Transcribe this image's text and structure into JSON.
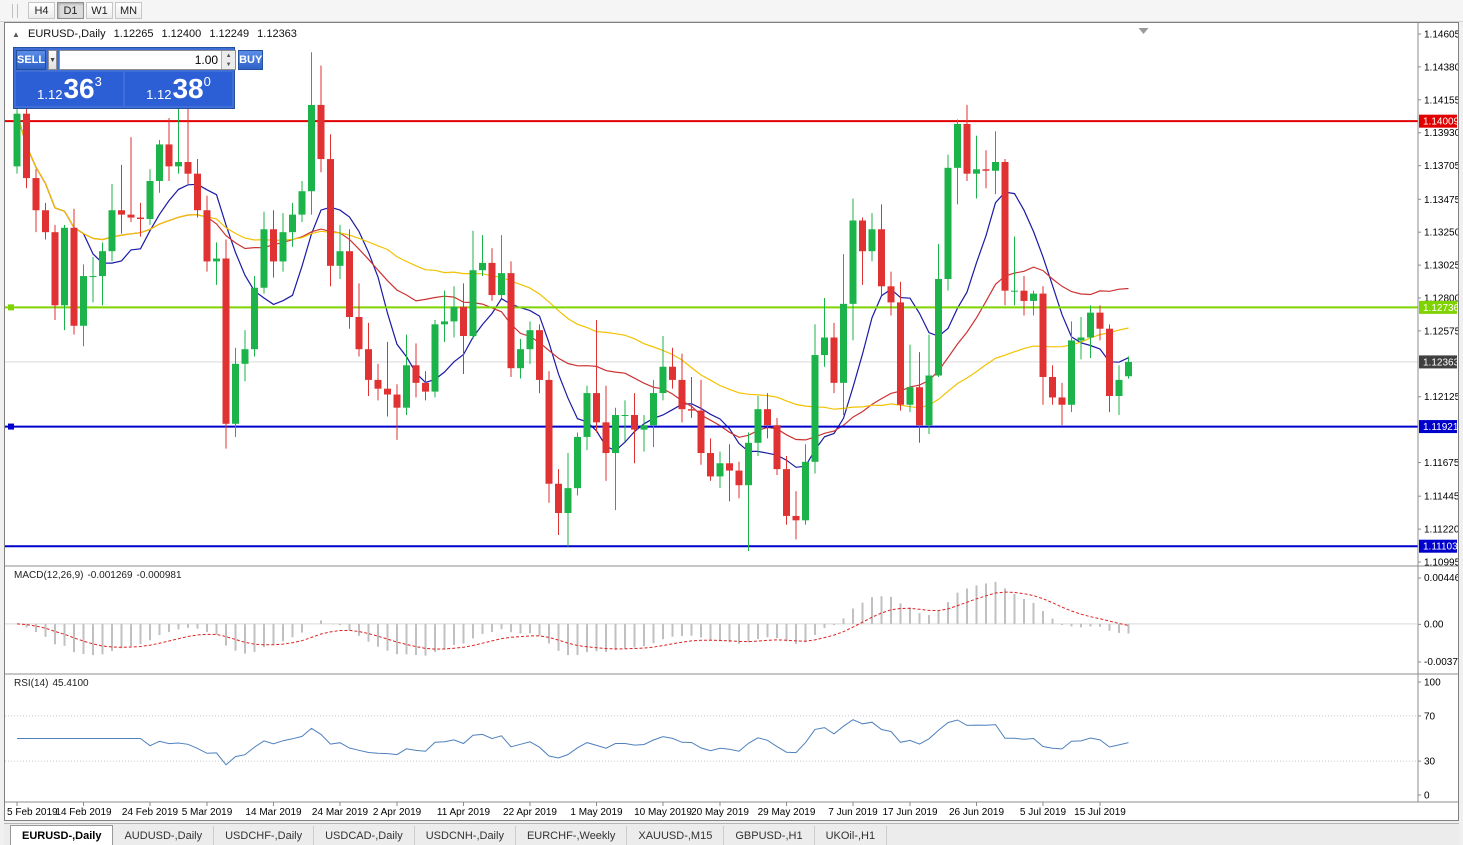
{
  "toolbar": {
    "timeframes": [
      "H4",
      "D1",
      "W1",
      "MN"
    ],
    "active": "D1"
  },
  "chart_header": {
    "collapse_icon": "▲",
    "symbol": "EURUSD-,Daily",
    "open": "1.12265",
    "high": "1.12400",
    "low": "1.12249",
    "close": "1.12363"
  },
  "trade_panel": {
    "sell_label": "SELL",
    "buy_label": "BUY",
    "volume": "1.00",
    "dropdown_icon": "▼",
    "spin_up_icon": "▲",
    "spin_down_icon": "▼",
    "sell_price": {
      "prefix": "1.12",
      "big": "36",
      "sup": "3"
    },
    "buy_price": {
      "prefix": "1.12",
      "big": "38",
      "sup": "0"
    }
  },
  "chart_data": {
    "type": "candlestick",
    "symbol": "EURUSD-",
    "timeframe": "Daily",
    "colors": {
      "up": "#1cb44a",
      "down": "#e03232",
      "macd_hist": "#c0c0c0",
      "macd_signal": "#dd2222",
      "rsi_line": "#4f81bd",
      "current_tag": "#3f3f3f",
      "grid": "#d9d9d9"
    },
    "moving_averages": [
      {
        "period": 8,
        "color": "#1a1aa6"
      },
      {
        "period": 21,
        "color": "#cc3333"
      },
      {
        "period": 40,
        "color": "#f2c200"
      }
    ],
    "y_axis": {
      "max": 1.14605,
      "min": 1.10995,
      "tick_labels": [
        "1.14605",
        "1.14380",
        "1.14155",
        "1.13930",
        "1.13705",
        "1.13475",
        "1.13250",
        "1.13025",
        "1.12800",
        "1.12575",
        "1.12125",
        "1.11675",
        "1.11445",
        "1.11220",
        "1.10995"
      ]
    },
    "hlines": [
      {
        "value": 1.14009,
        "label": "1.14009",
        "color": "#e00000",
        "handle": false
      },
      {
        "value": 1.12736,
        "label": "1.12736",
        "color": "#7fd300",
        "handle": true
      },
      {
        "value": 1.11921,
        "label": "1.11921",
        "color": "#0000cc",
        "handle": true
      },
      {
        "value": 1.11103,
        "label": "1.11103",
        "color": "#0000cc",
        "handle": false
      }
    ],
    "current_price": {
      "value": 1.12363,
      "label": "1.12363"
    },
    "macd": {
      "name": "MACD(12,26,9)",
      "value1": "-0.001269",
      "value2": "-0.000981",
      "params": [
        12,
        26,
        9
      ],
      "axis": [
        "0.004465",
        "0.00",
        "-0.003715"
      ]
    },
    "rsi": {
      "name": "RSI(14)",
      "value": "45.4100",
      "period": 14,
      "levels": [
        70,
        30
      ],
      "axis": [
        "100",
        "70",
        "30",
        "0"
      ]
    },
    "x_tick_indices": [
      0,
      7,
      14,
      20,
      27,
      34,
      40,
      47,
      54,
      61,
      68,
      74,
      81,
      88,
      94,
      101,
      108,
      114
    ],
    "x_tick_labels": [
      "5 Feb 2019",
      "14 Feb 2019",
      "24 Feb 2019",
      "5 Mar 2019",
      "14 Mar 2019",
      "24 Mar 2019",
      "2 Apr 2019",
      "11 Apr 2019",
      "22 Apr 2019",
      "1 May 2019",
      "10 May 2019",
      "20 May 2019",
      "29 May 2019",
      "7 Jun 2019",
      "17 Jun 2019",
      "26 Jun 2019",
      "5 Jul 2019",
      "15 Jul 2019"
    ],
    "candles": [
      [
        1.137,
        1.141,
        1.1365,
        1.1406
      ],
      [
        1.1406,
        1.141,
        1.1355,
        1.1362
      ],
      [
        1.1362,
        1.1368,
        1.1325,
        1.134
      ],
      [
        1.134,
        1.1345,
        1.132,
        1.1325
      ],
      [
        1.1325,
        1.133,
        1.1265,
        1.1275
      ],
      [
        1.1275,
        1.133,
        1.1258,
        1.1328
      ],
      [
        1.1328,
        1.1341,
        1.1255,
        1.1261
      ],
      [
        1.1261,
        1.1303,
        1.1247,
        1.1295
      ],
      [
        1.1295,
        1.1308,
        1.1277,
        1.1295
      ],
      [
        1.1295,
        1.1318,
        1.1275,
        1.1312
      ],
      [
        1.1312,
        1.1358,
        1.1305,
        1.134
      ],
      [
        1.134,
        1.1371,
        1.1324,
        1.1337
      ],
      [
        1.1337,
        1.139,
        1.1332,
        1.1335
      ],
      [
        1.1335,
        1.1345,
        1.1322,
        1.1334
      ],
      [
        1.1334,
        1.1368,
        1.133,
        1.136
      ],
      [
        1.136,
        1.1388,
        1.1352,
        1.1385
      ],
      [
        1.1385,
        1.1403,
        1.136,
        1.137
      ],
      [
        1.137,
        1.142,
        1.1365,
        1.1373
      ],
      [
        1.1373,
        1.141,
        1.1358,
        1.1365
      ],
      [
        1.1365,
        1.1375,
        1.1335,
        1.134
      ],
      [
        1.134,
        1.135,
        1.1298,
        1.1305
      ],
      [
        1.1305,
        1.1318,
        1.1289,
        1.1307
      ],
      [
        1.1307,
        1.132,
        1.1177,
        1.1194
      ],
      [
        1.1194,
        1.1246,
        1.1185,
        1.1235
      ],
      [
        1.1235,
        1.1258,
        1.1223,
        1.1245
      ],
      [
        1.1245,
        1.1295,
        1.124,
        1.1287
      ],
      [
        1.1287,
        1.1339,
        1.1283,
        1.1327
      ],
      [
        1.1327,
        1.134,
        1.1294,
        1.1305
      ],
      [
        1.1305,
        1.1338,
        1.1298,
        1.1325
      ],
      [
        1.1325,
        1.1345,
        1.1315,
        1.1337
      ],
      [
        1.1337,
        1.136,
        1.1332,
        1.1353
      ],
      [
        1.1353,
        1.1448,
        1.1337,
        1.1412
      ],
      [
        1.1412,
        1.1439,
        1.1366,
        1.1375
      ],
      [
        1.1375,
        1.1392,
        1.1288,
        1.1302
      ],
      [
        1.1302,
        1.133,
        1.1293,
        1.1312
      ],
      [
        1.1312,
        1.1327,
        1.1259,
        1.1267
      ],
      [
        1.1267,
        1.129,
        1.124,
        1.1245
      ],
      [
        1.1245,
        1.1263,
        1.1213,
        1.1224
      ],
      [
        1.1224,
        1.1235,
        1.121,
        1.1218
      ],
      [
        1.1218,
        1.125,
        1.1199,
        1.1214
      ],
      [
        1.1214,
        1.1221,
        1.1183,
        1.1205
      ],
      [
        1.1205,
        1.1255,
        1.12,
        1.1234
      ],
      [
        1.1234,
        1.1249,
        1.1212,
        1.1222
      ],
      [
        1.1222,
        1.123,
        1.121,
        1.1216
      ],
      [
        1.1216,
        1.1265,
        1.1212,
        1.1262
      ],
      [
        1.1262,
        1.1285,
        1.125,
        1.1264
      ],
      [
        1.1264,
        1.1288,
        1.1253,
        1.1274
      ],
      [
        1.1274,
        1.129,
        1.1228,
        1.1254
      ],
      [
        1.1254,
        1.1326,
        1.1252,
        1.1299
      ],
      [
        1.1299,
        1.1323,
        1.1295,
        1.1304
      ],
      [
        1.1304,
        1.1314,
        1.1278,
        1.1282
      ],
      [
        1.1282,
        1.1323,
        1.128,
        1.1297
      ],
      [
        1.1297,
        1.1305,
        1.1226,
        1.1232
      ],
      [
        1.1232,
        1.1252,
        1.1225,
        1.1245
      ],
      [
        1.1245,
        1.1264,
        1.1235,
        1.1258
      ],
      [
        1.1258,
        1.1262,
        1.1215,
        1.1224
      ],
      [
        1.1224,
        1.123,
        1.114,
        1.1153
      ],
      [
        1.1153,
        1.1163,
        1.1118,
        1.1133
      ],
      [
        1.1133,
        1.1174,
        1.111,
        1.115
      ],
      [
        1.115,
        1.1188,
        1.1145,
        1.1185
      ],
      [
        1.1185,
        1.122,
        1.1176,
        1.1215
      ],
      [
        1.1215,
        1.1265,
        1.1188,
        1.1195
      ],
      [
        1.1195,
        1.122,
        1.1155,
        1.1174
      ],
      [
        1.1174,
        1.1205,
        1.1135,
        1.12
      ],
      [
        1.12,
        1.121,
        1.1182,
        1.12
      ],
      [
        1.12,
        1.1215,
        1.1167,
        1.119
      ],
      [
        1.119,
        1.12,
        1.1175,
        1.1193
      ],
      [
        1.1193,
        1.1224,
        1.1178,
        1.1215
      ],
      [
        1.1215,
        1.1254,
        1.121,
        1.1233
      ],
      [
        1.1233,
        1.1246,
        1.1218,
        1.1224
      ],
      [
        1.1224,
        1.1242,
        1.1195,
        1.1204
      ],
      [
        1.1204,
        1.1226,
        1.1198,
        1.1203
      ],
      [
        1.1203,
        1.1224,
        1.1166,
        1.1174
      ],
      [
        1.1174,
        1.1184,
        1.1155,
        1.1158
      ],
      [
        1.1158,
        1.1175,
        1.115,
        1.1167
      ],
      [
        1.1167,
        1.118,
        1.1141,
        1.1162
      ],
      [
        1.1162,
        1.1168,
        1.1143,
        1.1152
      ],
      [
        1.1152,
        1.1188,
        1.1107,
        1.1181
      ],
      [
        1.1181,
        1.1213,
        1.1172,
        1.1204
      ],
      [
        1.1204,
        1.1215,
        1.1184,
        1.1193
      ],
      [
        1.1193,
        1.1198,
        1.1159,
        1.1163
      ],
      [
        1.1163,
        1.1172,
        1.1125,
        1.1131
      ],
      [
        1.1131,
        1.1148,
        1.1115,
        1.1128
      ],
      [
        1.1128,
        1.118,
        1.1125,
        1.1168
      ],
      [
        1.1168,
        1.1262,
        1.116,
        1.1241
      ],
      [
        1.1241,
        1.128,
        1.1233,
        1.1253
      ],
      [
        1.1253,
        1.1263,
        1.1215,
        1.1222
      ],
      [
        1.1222,
        1.131,
        1.12,
        1.1276
      ],
      [
        1.1276,
        1.1348,
        1.1251,
        1.1333
      ],
      [
        1.1333,
        1.1335,
        1.1289,
        1.1312
      ],
      [
        1.1312,
        1.1338,
        1.1305,
        1.1327
      ],
      [
        1.1327,
        1.1344,
        1.1282,
        1.1288
      ],
      [
        1.1288,
        1.1298,
        1.1268,
        1.1277
      ],
      [
        1.1277,
        1.1291,
        1.1203,
        1.1207
      ],
      [
        1.1207,
        1.1248,
        1.1202,
        1.1219
      ],
      [
        1.1219,
        1.1243,
        1.1181,
        1.1193
      ],
      [
        1.1193,
        1.1255,
        1.1187,
        1.1227
      ],
      [
        1.1227,
        1.1317,
        1.1226,
        1.1293
      ],
      [
        1.1293,
        1.1378,
        1.1285,
        1.1369
      ],
      [
        1.1369,
        1.1402,
        1.1344,
        1.1399
      ],
      [
        1.1399,
        1.1412,
        1.136,
        1.1365
      ],
      [
        1.1365,
        1.1391,
        1.1348,
        1.1368
      ],
      [
        1.1368,
        1.1381,
        1.1355,
        1.1367
      ],
      [
        1.1367,
        1.1394,
        1.1351,
        1.1373
      ],
      [
        1.1373,
        1.1375,
        1.1275,
        1.1285
      ],
      [
        1.1285,
        1.1322,
        1.1275,
        1.1285
      ],
      [
        1.1285,
        1.1295,
        1.1268,
        1.1278
      ],
      [
        1.1278,
        1.1285,
        1.1268,
        1.1283
      ],
      [
        1.1283,
        1.1288,
        1.1207,
        1.1226
      ],
      [
        1.1226,
        1.1234,
        1.1207,
        1.1212
      ],
      [
        1.1212,
        1.1222,
        1.1193,
        1.1207
      ],
      [
        1.1207,
        1.1264,
        1.1202,
        1.1251
      ],
      [
        1.1251,
        1.1267,
        1.1238,
        1.1253
      ],
      [
        1.1253,
        1.1275,
        1.1239,
        1.127
      ],
      [
        1.127,
        1.1275,
        1.1251,
        1.1259
      ],
      [
        1.1259,
        1.1262,
        1.1202,
        1.1213
      ],
      [
        1.1213,
        1.1234,
        1.12,
        1.1224
      ],
      [
        1.12265,
        1.124,
        1.12249,
        1.12363
      ]
    ]
  },
  "tabs": {
    "items": [
      "EURUSD-,Daily",
      "AUDUSD-,Daily",
      "USDCHF-,Daily",
      "USDCAD-,Daily",
      "USDCNH-,Daily",
      "EURCHF-,Weekly",
      "XAUUSD-,M15",
      "GBPUSD-,H1",
      "UKOil-,H1"
    ],
    "active_index": 0
  }
}
